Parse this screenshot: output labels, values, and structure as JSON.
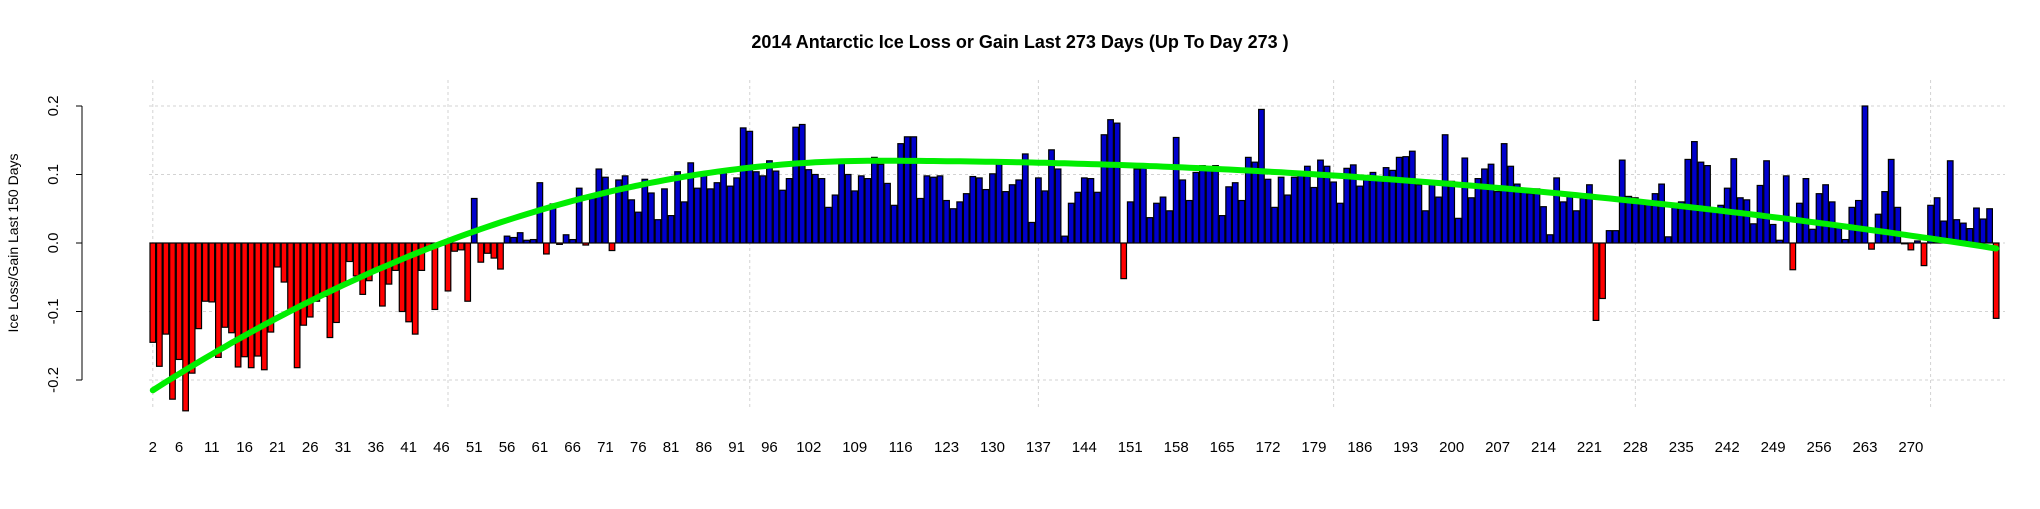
{
  "chart_data": {
    "type": "bar",
    "title": "2014 Antarctic Ice Loss or Gain Last 273 Days (Up To Day 273 )",
    "xlabel": "",
    "ylabel": "Ice Loss/Gain Last 150 Days",
    "ylim": [
      -0.2,
      0.2
    ],
    "y_ticks": [
      "-0.2",
      "-0.1",
      "0.0",
      "0.1",
      "0.2"
    ],
    "y_tick_values": [
      -0.2,
      -0.1,
      0.0,
      0.1,
      0.2
    ],
    "x_tick_labels": [
      "2",
      "6",
      "11",
      "16",
      "21",
      "26",
      "31",
      "36",
      "41",
      "46",
      "51",
      "56",
      "61",
      "66",
      "71",
      "76",
      "81",
      "86",
      "91",
      "96",
      "102",
      "109",
      "116",
      "123",
      "130",
      "137",
      "144",
      "151",
      "158",
      "165",
      "172",
      "179",
      "186",
      "193",
      "200",
      "207",
      "214",
      "221",
      "228",
      "235",
      "242",
      "249",
      "256",
      "263",
      "270"
    ],
    "grid": true,
    "positive_color": "#0000cc",
    "negative_color": "#ff0000",
    "trend_color": "#00ee00",
    "trend_series_name": "smoothed trend",
    "first_day": 2,
    "trend": {
      "start": -0.215,
      "peak_day": 112,
      "peak": 0.12,
      "end": -0.008
    },
    "values": [
      -0.145,
      -0.18,
      -0.133,
      -0.228,
      -0.17,
      -0.245,
      -0.19,
      -0.125,
      -0.085,
      -0.086,
      -0.167,
      -0.123,
      -0.131,
      -0.181,
      -0.166,
      -0.182,
      -0.165,
      -0.185,
      -0.13,
      -0.035,
      -0.057,
      -0.1,
      -0.182,
      -0.12,
      -0.108,
      -0.085,
      -0.078,
      -0.138,
      -0.116,
      -0.06,
      -0.027,
      -0.048,
      -0.075,
      -0.055,
      -0.04,
      -0.092,
      -0.06,
      -0.04,
      -0.1,
      -0.115,
      -0.133,
      -0.04,
      -0.009,
      -0.097,
      -0.003,
      -0.07,
      -0.012,
      -0.01,
      -0.085,
      0.065,
      -0.028,
      -0.015,
      -0.022,
      -0.038,
      0.01,
      0.008,
      0.015,
      0.004,
      0.005,
      0.088,
      -0.016,
      0.057,
      -0.002,
      0.012,
      0.005,
      0.08,
      -0.003,
      0.067,
      0.108,
      0.096,
      -0.011,
      0.092,
      0.098,
      0.063,
      0.045,
      0.093,
      0.073,
      0.034,
      0.079,
      0.04,
      0.104,
      0.06,
      0.117,
      0.08,
      0.102,
      0.079,
      0.088,
      0.107,
      0.083,
      0.095,
      0.168,
      0.163,
      0.104,
      0.098,
      0.12,
      0.105,
      0.077,
      0.094,
      0.169,
      0.173,
      0.107,
      0.1,
      0.094,
      0.052,
      0.07,
      0.118,
      0.1,
      0.076,
      0.098,
      0.094,
      0.125,
      0.115,
      0.087,
      0.055,
      0.145,
      0.155,
      0.155,
      0.065,
      0.098,
      0.096,
      0.098,
      0.062,
      0.05,
      0.06,
      0.072,
      0.097,
      0.095,
      0.078,
      0.101,
      0.12,
      0.075,
      0.085,
      0.092,
      0.13,
      0.03,
      0.095,
      0.076,
      0.136,
      0.108,
      0.01,
      0.058,
      0.074,
      0.095,
      0.094,
      0.074,
      0.158,
      0.18,
      0.175,
      -0.052,
      0.06,
      0.108,
      0.114,
      0.037,
      0.058,
      0.067,
      0.047,
      0.154,
      0.092,
      0.062,
      0.103,
      0.113,
      0.108,
      0.113,
      0.04,
      0.082,
      0.088,
      0.062,
      0.125,
      0.118,
      0.195,
      0.093,
      0.052,
      0.096,
      0.07,
      0.096,
      0.102,
      0.112,
      0.081,
      0.121,
      0.112,
      0.089,
      0.058,
      0.109,
      0.114,
      0.083,
      0.093,
      0.103,
      0.093,
      0.11,
      0.106,
      0.125,
      0.126,
      0.134,
      0.085,
      0.047,
      0.085,
      0.067,
      0.158,
      0.09,
      0.036,
      0.124,
      0.066,
      0.094,
      0.108,
      0.115,
      0.075,
      0.145,
      0.112,
      0.086,
      0.077,
      0.072,
      0.079,
      0.053,
      0.012,
      0.095,
      0.06,
      0.071,
      0.047,
      0.065,
      0.085,
      -0.113,
      -0.081,
      0.018,
      0.018,
      0.121,
      0.068,
      0.066,
      0.059,
      0.061,
      0.072,
      0.086,
      0.009,
      0.058,
      0.06,
      0.122,
      0.148,
      0.118,
      0.113,
      0.05,
      0.055,
      0.08,
      0.123,
      0.066,
      0.063,
      0.028,
      0.084,
      0.12,
      0.027,
      0.004,
      0.098,
      -0.039,
      0.058,
      0.094,
      0.02,
      0.072,
      0.085,
      0.06,
      0.027,
      0.005,
      0.052,
      0.062,
      0.2,
      -0.009,
      0.042,
      0.075,
      0.122,
      0.052,
      0.0,
      -0.01,
      0.003,
      -0.033,
      0.055,
      0.066,
      0.032,
      0.12,
      0.034,
      0.029,
      0.021,
      0.051,
      0.035,
      0.05,
      -0.11
    ]
  }
}
